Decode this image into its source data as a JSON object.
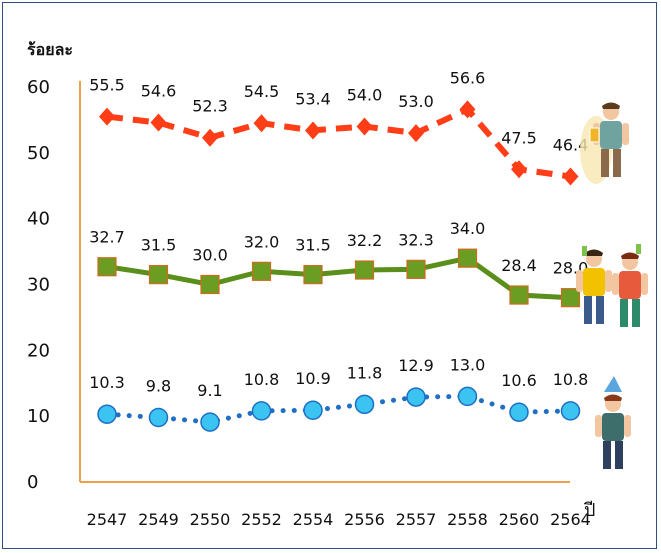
{
  "chart_data": {
    "type": "line",
    "ylabel": "ร้อยละ",
    "xlabel": "ปี",
    "categories": [
      "2547",
      "2549",
      "2550",
      "2552",
      "2554",
      "2556",
      "2557",
      "2558",
      "2560",
      "2564"
    ],
    "ylim": [
      0,
      60
    ],
    "yticks": [
      0,
      10,
      20,
      30,
      40,
      50,
      60
    ],
    "grid": false,
    "legend": "none",
    "series": [
      {
        "values": [
          55.5,
          54.6,
          52.3,
          54.5,
          53.4,
          54.0,
          53.0,
          56.6,
          47.5,
          46.4
        ],
        "labels": [
          "55.5",
          "54.6",
          "52.3",
          "54.5",
          "53.4",
          "54.0",
          "53.0",
          "56.6",
          "47.5",
          "46.4"
        ],
        "color": "#ff3d17",
        "marker": "diamond",
        "line": "dashed"
      },
      {
        "values": [
          32.7,
          31.5,
          30.0,
          32.0,
          31.5,
          32.2,
          32.3,
          34.0,
          28.4,
          28.0
        ],
        "labels": [
          "32.7",
          "31.5",
          "30.0",
          "32.0",
          "31.5",
          "32.2",
          "32.3",
          "34.0",
          "28.4",
          "28.0"
        ],
        "color": "#5a8f1c",
        "marker": "square",
        "line": "solid"
      },
      {
        "values": [
          10.3,
          9.8,
          9.1,
          10.8,
          10.9,
          11.8,
          12.9,
          13.0,
          10.6,
          10.8
        ],
        "labels": [
          "10.3",
          "9.8",
          "9.1",
          "10.8",
          "10.9",
          "11.8",
          "12.9",
          "13.0",
          "10.6",
          "10.8"
        ],
        "color": "#1f6fc4",
        "marker": "circle",
        "line": "dotted"
      }
    ],
    "axis_color": "#f0a04a",
    "illustrations": [
      "man-drinking-icon",
      "couple-dancing-icon",
      "woman-partying-icon"
    ]
  }
}
